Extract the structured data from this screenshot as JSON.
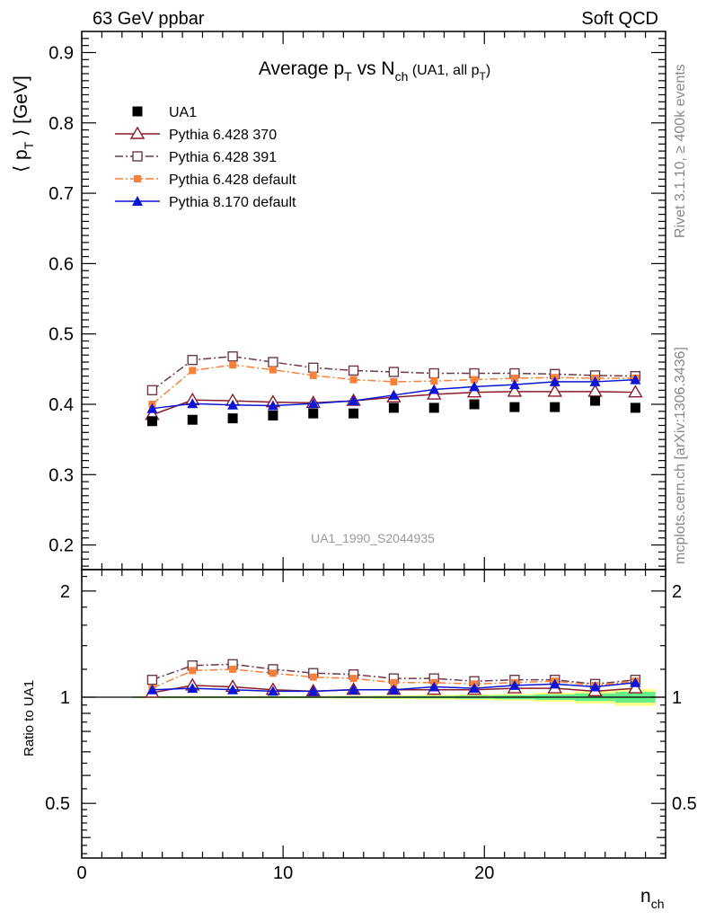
{
  "header": {
    "left": "63 GeV ppbar",
    "right": "Soft QCD"
  },
  "side": {
    "rivet": "Rivet 3.1.10, ≥ 400k events",
    "mcplots": "mcplots.cern.ch [arXiv:1306.3436]"
  },
  "chart_data": {
    "type": "scatter",
    "title": {
      "main": "Average p",
      "sub1": "T",
      "mid": " vs N",
      "sub2": "ch",
      "paren": " (UA1, all p",
      "sub3": "T",
      "close": ")"
    },
    "ylabel": {
      "pre": "⟨ p",
      "sub": "T",
      "post": " ⟩ [GeV]"
    },
    "xlabel": {
      "main": "n",
      "sub": "ch"
    },
    "ratio_ylabel": "Ratio to UA1",
    "analysis_tag": "UA1_1990_S2044935",
    "xlim": [
      0,
      29
    ],
    "ylim": [
      0.165,
      0.93
    ],
    "ratio_ylim": [
      0.35,
      2.3
    ],
    "x_ticks": [
      0,
      10,
      20
    ],
    "x_tick_labels": [
      "0",
      "10",
      "20"
    ],
    "y_ticks": [
      0.2,
      0.3,
      0.4,
      0.5,
      0.6,
      0.7,
      0.8,
      0.9
    ],
    "y_tick_labels": [
      "0.2",
      "0.3",
      "0.4",
      "0.5",
      "0.6",
      "0.7",
      "0.8",
      "0.9"
    ],
    "ratio_ticks": [
      0.5,
      1,
      2
    ],
    "ratio_tick_labels": [
      "0.5",
      "1",
      "2"
    ],
    "x": [
      3.5,
      5.5,
      7.5,
      9.5,
      11.5,
      13.5,
      15.5,
      17.5,
      19.5,
      21.5,
      23.5,
      25.5,
      27.5
    ],
    "series": [
      {
        "name": "UA1",
        "marker": "square-filled",
        "line": "none",
        "color": "#000000",
        "values": [
          0.376,
          0.378,
          0.38,
          0.384,
          0.387,
          0.387,
          0.395,
          0.395,
          0.4,
          0.396,
          0.396,
          0.405,
          0.395
        ],
        "ratio": [
          1,
          1,
          1,
          1,
          1,
          1,
          1,
          1,
          1,
          1,
          1,
          1,
          1
        ]
      },
      {
        "name": "Pythia 6.428 370",
        "marker": "triangle-open",
        "line": "solid",
        "color": "#8b1a2a",
        "values": [
          0.385,
          0.406,
          0.405,
          0.403,
          0.402,
          0.405,
          0.41,
          0.414,
          0.417,
          0.418,
          0.418,
          0.418,
          0.417
        ],
        "ratio": [
          1.03,
          1.08,
          1.07,
          1.05,
          1.04,
          1.05,
          1.05,
          1.05,
          1.05,
          1.06,
          1.06,
          1.04,
          1.06
        ]
      },
      {
        "name": "Pythia 6.428 391",
        "marker": "square-open",
        "line": "dashdot",
        "color": "#6b3a4a",
        "values": [
          0.42,
          0.463,
          0.468,
          0.46,
          0.452,
          0.448,
          0.446,
          0.444,
          0.444,
          0.444,
          0.443,
          0.441,
          0.44
        ],
        "ratio": [
          1.12,
          1.23,
          1.24,
          1.2,
          1.17,
          1.16,
          1.13,
          1.13,
          1.11,
          1.12,
          1.12,
          1.09,
          1.12
        ]
      },
      {
        "name": "Pythia 6.428 default",
        "marker": "square-filled-small",
        "line": "dashdot",
        "color": "#f5813a",
        "values": [
          0.4,
          0.448,
          0.456,
          0.449,
          0.441,
          0.435,
          0.432,
          0.433,
          0.435,
          0.437,
          0.438,
          0.437,
          0.437
        ],
        "ratio": [
          1.06,
          1.19,
          1.2,
          1.17,
          1.14,
          1.13,
          1.1,
          1.1,
          1.09,
          1.1,
          1.11,
          1.08,
          1.11
        ]
      },
      {
        "name": "Pythia 8.170 default",
        "marker": "triangle-filled",
        "line": "solid",
        "color": "#0a14d6",
        "values": [
          0.394,
          0.401,
          0.399,
          0.398,
          0.401,
          0.405,
          0.413,
          0.421,
          0.425,
          0.428,
          0.432,
          0.432,
          0.435
        ],
        "ratio": [
          1.05,
          1.06,
          1.05,
          1.04,
          1.04,
          1.05,
          1.05,
          1.07,
          1.06,
          1.08,
          1.09,
          1.07,
          1.1
        ]
      }
    ],
    "ratio_bands": {
      "x_edges": [
        2.5,
        4.5,
        6.5,
        8.5,
        10.5,
        12.5,
        14.5,
        16.5,
        18.5,
        20.5,
        22.5,
        24.5,
        26.5,
        28.5
      ],
      "green_half_width": [
        0.005,
        0.005,
        0.005,
        0.005,
        0.005,
        0.006,
        0.007,
        0.008,
        0.01,
        0.013,
        0.018,
        0.025,
        0.035
      ],
      "yellow_half_width": [
        0.007,
        0.007,
        0.007,
        0.008,
        0.008,
        0.01,
        0.012,
        0.015,
        0.018,
        0.022,
        0.03,
        0.04,
        0.055
      ],
      "green_color": "#66ee88",
      "yellow_color": "#ffff88"
    }
  }
}
